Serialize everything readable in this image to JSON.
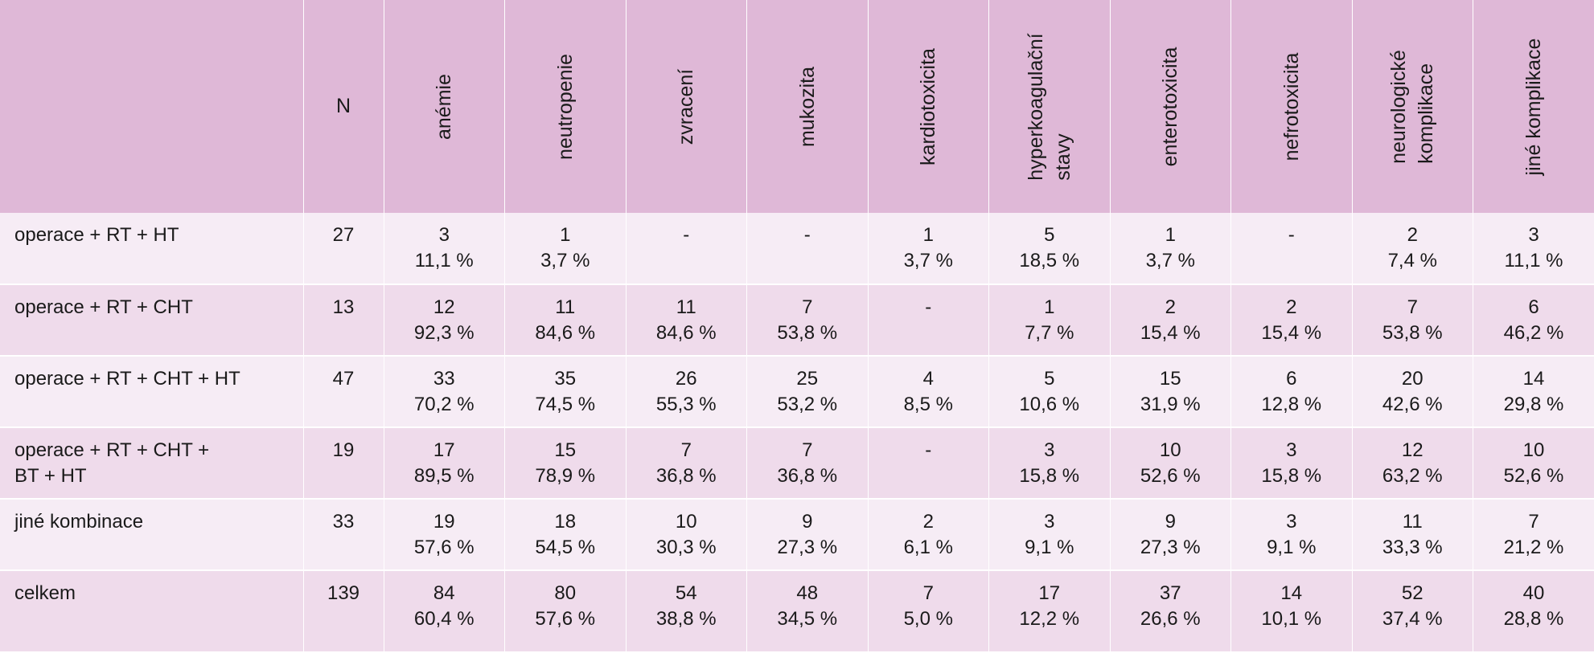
{
  "table": {
    "n_header": "N",
    "columns": [
      {
        "lines": [
          "anémie"
        ]
      },
      {
        "lines": [
          "neutropenie"
        ]
      },
      {
        "lines": [
          "zvracení"
        ]
      },
      {
        "lines": [
          "mukozita"
        ]
      },
      {
        "lines": [
          "kardiotoxicita"
        ]
      },
      {
        "lines": [
          "hyperkoagulační",
          "stavy"
        ]
      },
      {
        "lines": [
          "enterotoxicita"
        ]
      },
      {
        "lines": [
          "nefrotoxicita"
        ]
      },
      {
        "lines": [
          "neurologické",
          "komplikace"
        ]
      },
      {
        "lines": [
          "jiné komplikace"
        ]
      }
    ],
    "rows": [
      {
        "label_lines": [
          "operace + RT + HT"
        ],
        "n": "27",
        "cells": [
          [
            "3",
            "11,1 %"
          ],
          [
            "1",
            "3,7 %"
          ],
          [
            "-",
            ""
          ],
          [
            "-",
            ""
          ],
          [
            "1",
            "3,7 %"
          ],
          [
            "5",
            "18,5 %"
          ],
          [
            "1",
            "3,7 %"
          ],
          [
            "-",
            ""
          ],
          [
            "2",
            "7,4 %"
          ],
          [
            "3",
            "11,1 %"
          ]
        ]
      },
      {
        "label_lines": [
          "operace + RT + CHT"
        ],
        "n": "13",
        "cells": [
          [
            "12",
            "92,3 %"
          ],
          [
            "11",
            "84,6 %"
          ],
          [
            "11",
            "84,6 %"
          ],
          [
            "7",
            "53,8 %"
          ],
          [
            "-",
            ""
          ],
          [
            "1",
            "7,7 %"
          ],
          [
            "2",
            "15,4 %"
          ],
          [
            "2",
            "15,4 %"
          ],
          [
            "7",
            "53,8 %"
          ],
          [
            "6",
            "46,2 %"
          ]
        ]
      },
      {
        "label_lines": [
          "operace + RT + CHT + HT"
        ],
        "n": "47",
        "cells": [
          [
            "33",
            "70,2 %"
          ],
          [
            "35",
            "74,5 %"
          ],
          [
            "26",
            "55,3 %"
          ],
          [
            "25",
            "53,2 %"
          ],
          [
            "4",
            "8,5 %"
          ],
          [
            "5",
            "10,6 %"
          ],
          [
            "15",
            "31,9 %"
          ],
          [
            "6",
            "12,8 %"
          ],
          [
            "20",
            "42,6 %"
          ],
          [
            "14",
            "29,8 %"
          ]
        ]
      },
      {
        "label_lines": [
          "operace + RT + CHT +",
          "BT + HT"
        ],
        "n": "19",
        "cells": [
          [
            "17",
            "89,5 %"
          ],
          [
            "15",
            "78,9 %"
          ],
          [
            "7",
            "36,8 %"
          ],
          [
            "7",
            "36,8 %"
          ],
          [
            "-",
            ""
          ],
          [
            "3",
            "15,8 %"
          ],
          [
            "10",
            "52,6 %"
          ],
          [
            "3",
            "15,8 %"
          ],
          [
            "12",
            "63,2 %"
          ],
          [
            "10",
            "52,6 %"
          ]
        ]
      },
      {
        "label_lines": [
          "jiné kombinace"
        ],
        "n": "33",
        "cells": [
          [
            "19",
            "57,6 %"
          ],
          [
            "18",
            "54,5 %"
          ],
          [
            "10",
            "30,3 %"
          ],
          [
            "9",
            "27,3 %"
          ],
          [
            "2",
            "6,1 %"
          ],
          [
            "3",
            "9,1 %"
          ],
          [
            "9",
            "27,3 %"
          ],
          [
            "3",
            "9,1 %"
          ],
          [
            "11",
            "33,3 %"
          ],
          [
            "7",
            "21,2 %"
          ]
        ]
      },
      {
        "label_lines": [
          "celkem"
        ],
        "n": "139",
        "cells": [
          [
            "84",
            "60,4 %"
          ],
          [
            "80",
            "57,6 %"
          ],
          [
            "54",
            "38,8 %"
          ],
          [
            "48",
            "34,5 %"
          ],
          [
            "7",
            "5,0 %"
          ],
          [
            "17",
            "12,2 %"
          ],
          [
            "37",
            "26,6 %"
          ],
          [
            "14",
            "10,1 %"
          ],
          [
            "52",
            "37,4 %"
          ],
          [
            "40",
            "28,8 %"
          ]
        ]
      }
    ]
  }
}
